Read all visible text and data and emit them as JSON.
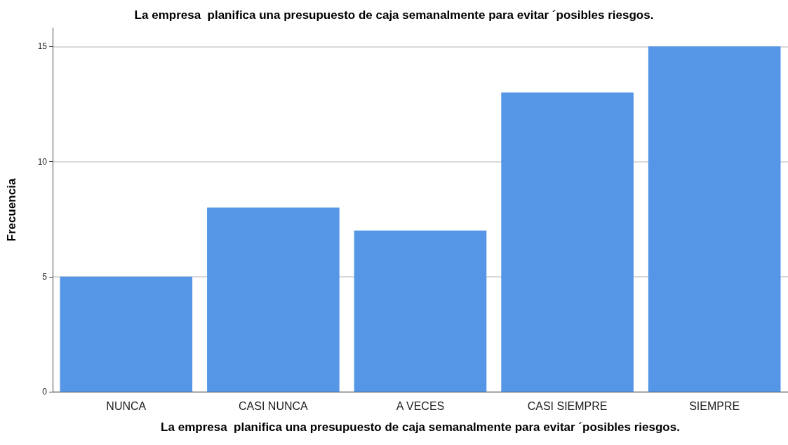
{
  "chart_data": {
    "type": "bar",
    "title": "La empresa  planifica una presupuesto de caja semanalmente para evitar ´posibles riesgos.",
    "xlabel": "La empresa  planifica una presupuesto de caja semanalmente para evitar ´posibles riesgos.",
    "ylabel": "Frecuencia",
    "categories": [
      "NUNCA",
      "CASI NUNCA",
      "A VECES",
      "CASI SIEMPRE",
      "SIEMPRE"
    ],
    "values": [
      5,
      8,
      7,
      13,
      15
    ],
    "color": "#5596e6",
    "ylim": [
      0,
      15.8
    ],
    "yticks": [
      0,
      5,
      10,
      15
    ],
    "grid": "y"
  }
}
